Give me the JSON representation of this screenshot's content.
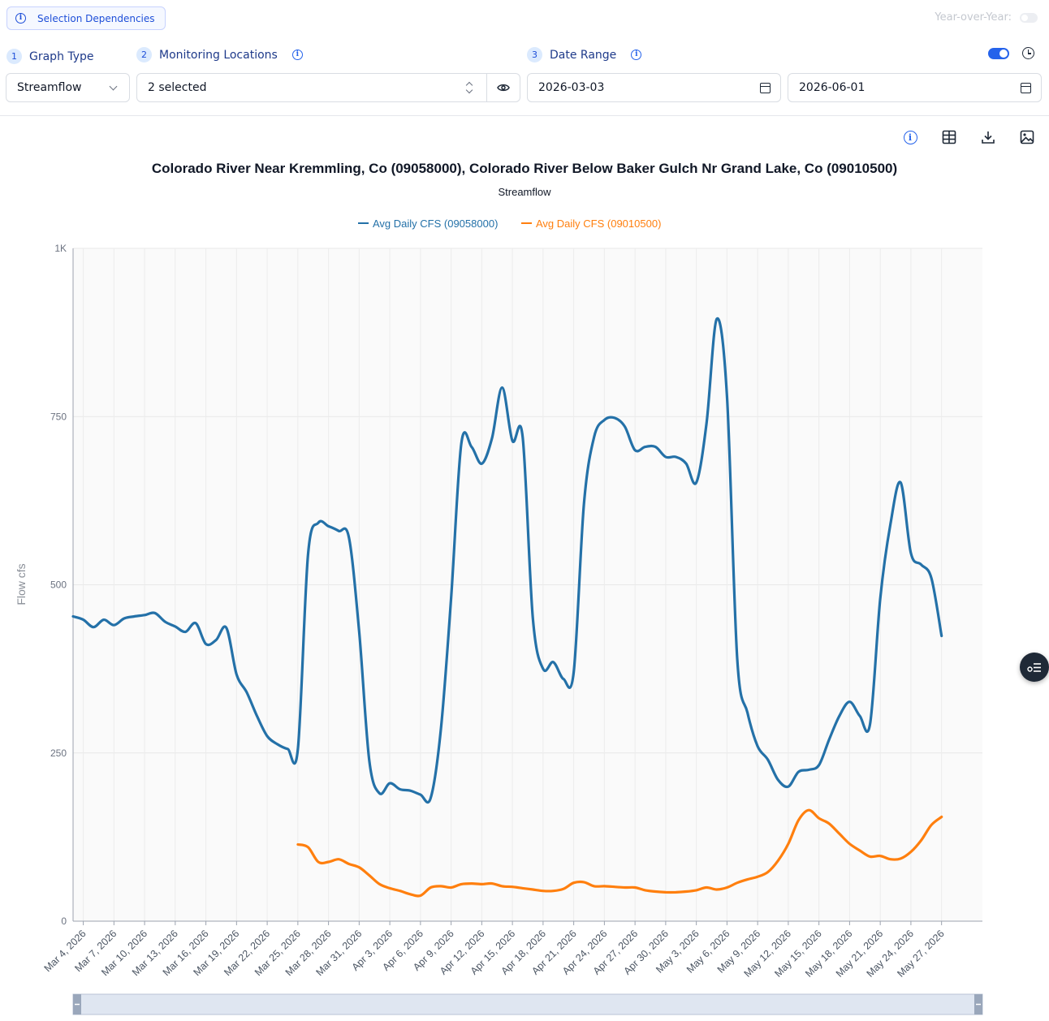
{
  "header": {
    "dependencies_button": "Selection Dependencies",
    "year_over_year_label": "Year-over-Year:"
  },
  "steps": [
    {
      "number": "1",
      "label": "Graph Type"
    },
    {
      "number": "2",
      "label": "Monitoring Locations"
    },
    {
      "number": "3",
      "label": "Date Range"
    }
  ],
  "controls": {
    "graph_type_value": "Streamflow",
    "locations_value": "2 selected",
    "start_date": "2026-03-03",
    "end_date": "2026-06-01"
  },
  "icons": [
    "info-icon",
    "chevron-down-icon",
    "up-down-chevron-icon",
    "eye-icon",
    "calendar-icon",
    "clock-icon",
    "table-icon",
    "download-icon",
    "image-icon",
    "legend-list-icon"
  ],
  "chart_data": {
    "type": "line",
    "title": "Colorado River Near Kremmling, Co (09058000), Colorado River Below Baker Gulch Nr Grand Lake, Co (09010500)",
    "subtitle": "Streamflow",
    "ylabel": "Flow cfs",
    "xlabel": "",
    "ylim": [
      0,
      1000
    ],
    "y_ticks": [
      0,
      250,
      500,
      750,
      1000
    ],
    "y_tick_labels": [
      "0",
      "250",
      "500",
      "750",
      "1K"
    ],
    "x_start": "2026-03-03",
    "x_end": "2026-05-31",
    "x_tick_labels": [
      "Mar 4, 2026",
      "Mar 7, 2026",
      "Mar 10, 2026",
      "Mar 13, 2026",
      "Mar 16, 2026",
      "Mar 19, 2026",
      "Mar 22, 2026",
      "Mar 25, 2026",
      "Mar 28, 2026",
      "Mar 31, 2026",
      "Apr 3, 2026",
      "Apr 6, 2026",
      "Apr 9, 2026",
      "Apr 12, 2026",
      "Apr 15, 2026",
      "Apr 18, 2026",
      "Apr 21, 2026",
      "Apr 24, 2026",
      "Apr 27, 2026",
      "Apr 30, 2026",
      "May 3, 2026",
      "May 6, 2026",
      "May 9, 2026",
      "May 12, 2026",
      "May 15, 2026",
      "May 18, 2026",
      "May 21, 2026",
      "May 24, 2026",
      "May 27, 2026"
    ],
    "legend_position": "top-center",
    "grid": true,
    "series": [
      {
        "name": "Avg Daily CFS (09058000)",
        "color": "#2471a8",
        "start_date": "2026-03-03",
        "values": [
          453,
          448,
          437,
          448,
          440,
          450,
          453,
          455,
          458,
          445,
          438,
          430,
          443,
          412,
          418,
          436,
          367,
          340,
          305,
          275,
          263,
          256,
          256,
          545,
          592,
          587,
          580,
          570,
          430,
          238,
          190,
          205,
          196,
          194,
          188,
          183,
          285,
          480,
          710,
          705,
          680,
          718,
          793,
          714,
          720,
          450,
          375,
          385,
          360,
          370,
          620,
          720,
          745,
          748,
          735,
          700,
          705,
          705,
          690,
          690,
          680,
          652,
          740,
          895,
          780,
          390,
          310,
          260,
          240,
          210,
          200,
          222,
          225,
          232,
          270,
          305,
          326,
          305,
          293,
          480,
          590,
          652,
          547,
          530,
          510,
          424
        ]
      },
      {
        "name": "Avg Daily CFS (09010500)",
        "color": "#ff7f0e",
        "start_date": "2026-03-25",
        "values": [
          114,
          110,
          88,
          88,
          92,
          85,
          80,
          68,
          55,
          49,
          45,
          40,
          38,
          50,
          52,
          50,
          55,
          56,
          55,
          56,
          52,
          51,
          49,
          47,
          45,
          45,
          48,
          57,
          58,
          52,
          52,
          51,
          50,
          50,
          46,
          44,
          43,
          43,
          44,
          46,
          50,
          47,
          50,
          57,
          62,
          66,
          73,
          90,
          115,
          150,
          165,
          153,
          145,
          130,
          115,
          105,
          96,
          97,
          92,
          93,
          103,
          120,
          143,
          155
        ]
      }
    ]
  }
}
